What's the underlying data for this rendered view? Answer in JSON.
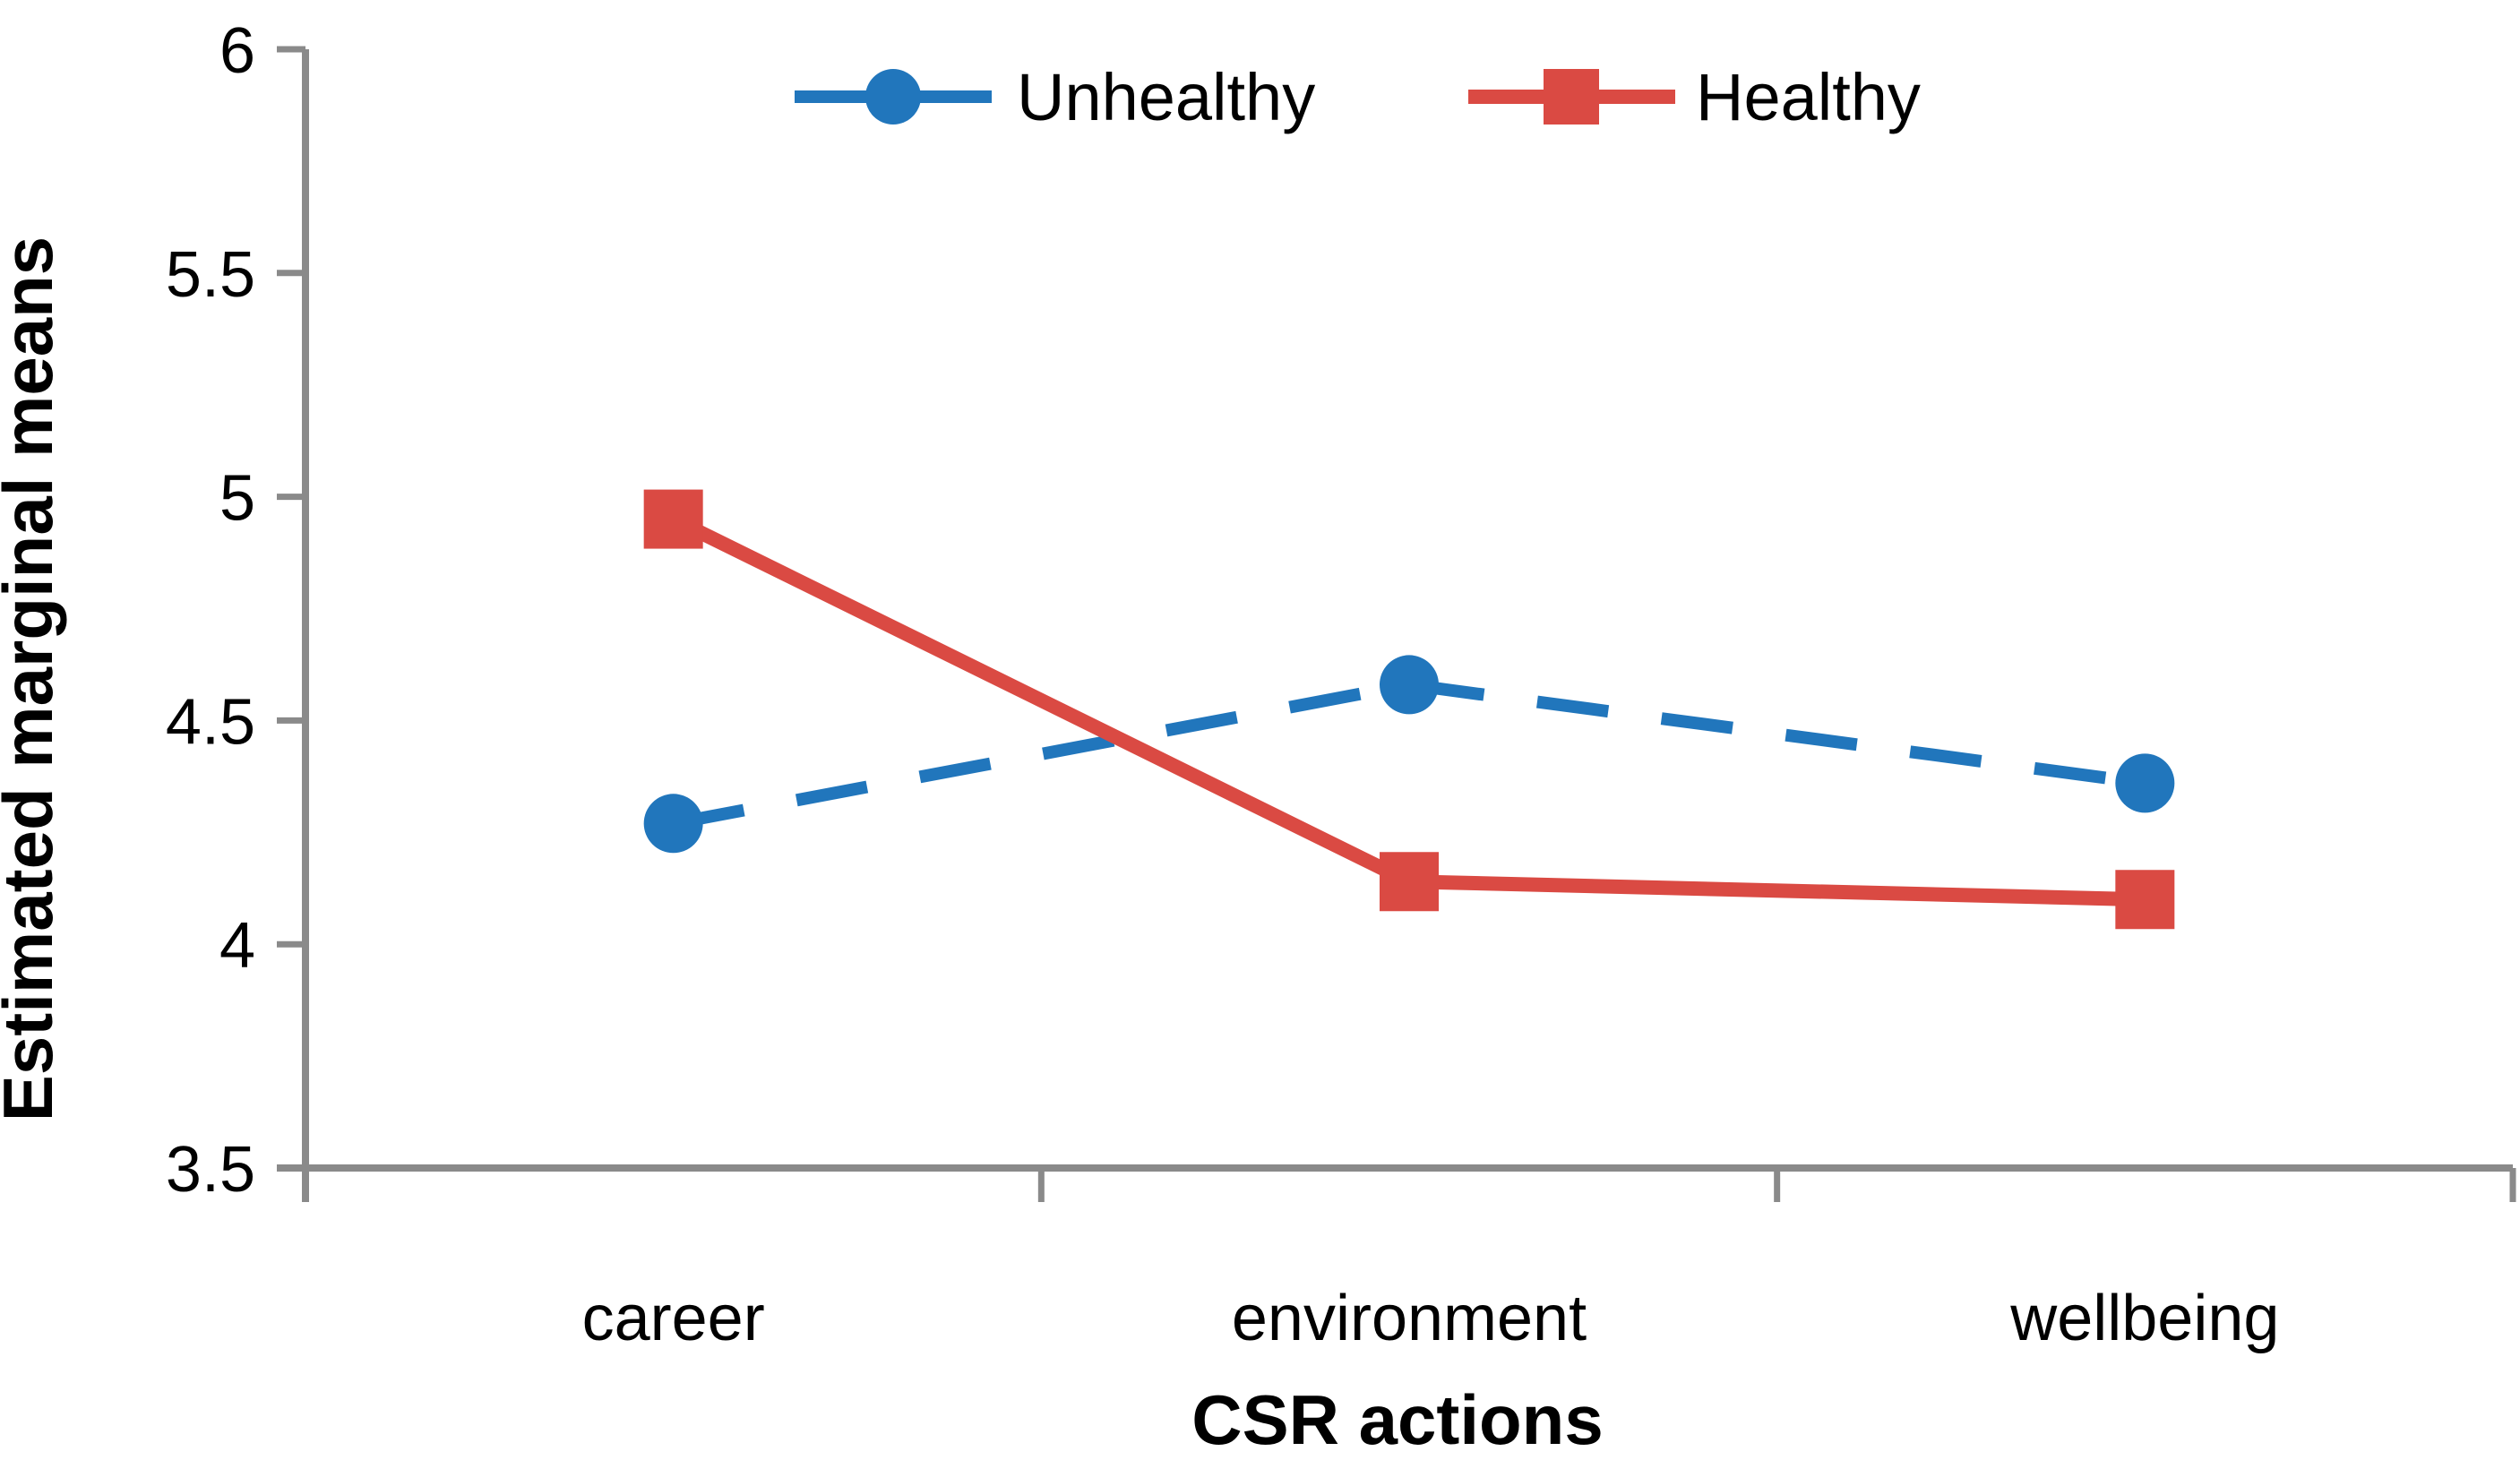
{
  "chart_data": {
    "type": "line",
    "title": "",
    "xlabel": "CSR actions",
    "ylabel": "Estimated marginal means",
    "categories": [
      "career",
      "environment",
      "wellbeing"
    ],
    "series": [
      {
        "name": "Unhealthy",
        "color": "#2176bc",
        "line_style": "dashed",
        "marker": "circle",
        "values": [
          4.27,
          4.58,
          4.36
        ]
      },
      {
        "name": "Healthy",
        "color": "#da4a43",
        "line_style": "solid",
        "marker": "square",
        "values": [
          4.95,
          4.14,
          4.1
        ]
      }
    ],
    "ylim": [
      3.5,
      6.0
    ],
    "yticks": [
      3.5,
      4.0,
      4.5,
      5.0,
      5.5,
      6.0
    ],
    "ytick_labels": [
      "3.5",
      "4",
      "4.5",
      "5",
      "5.5",
      "6"
    ],
    "grid": false,
    "legend_position": "top-center",
    "axis_color": "#8a8a8a",
    "text_color": "#000000"
  }
}
